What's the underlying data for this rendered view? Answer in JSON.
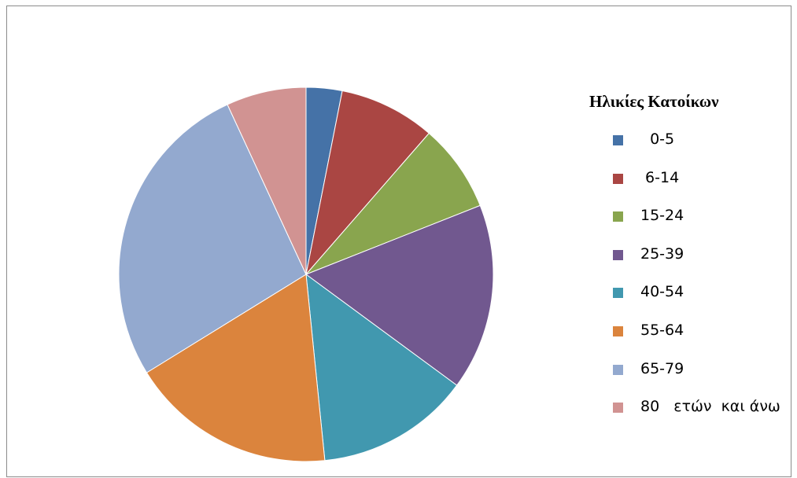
{
  "chart_data": {
    "type": "pie",
    "legend_title": "Ηλικίες Κατοίκων",
    "legend_position": "right",
    "start_angle": "12 o'clock, clockwise",
    "categories": [
      "  0-5",
      " 6-14",
      "15-24",
      "25-39",
      "40-54",
      "55-64",
      "65-79",
      "80   ετών  και άνω"
    ],
    "values": [
      3.1,
      8.3,
      7.6,
      16.1,
      13.3,
      17.8,
      26.9,
      6.9
    ],
    "colors": [
      "#4572A7",
      "#AA4643",
      "#89A54E",
      "#71588F",
      "#4198AF",
      "#DB843D",
      "#93A9CF",
      "#D19392"
    ]
  }
}
